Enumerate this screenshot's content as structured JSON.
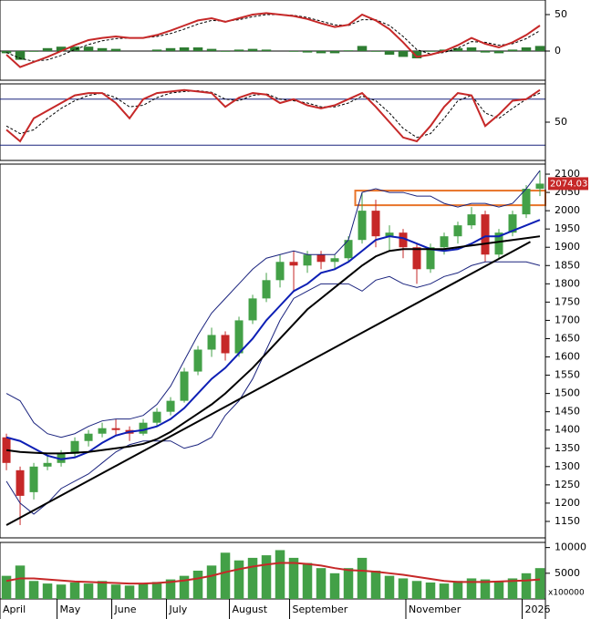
{
  "chart_data": [
    {
      "type": "macd",
      "ylim": [
        -40,
        70
      ],
      "yticks": [
        0,
        50
      ],
      "series": [
        {
          "style": "bar",
          "color": "#2e7d32",
          "values": [
            -3,
            -12,
            -1,
            4,
            6,
            6,
            6,
            4,
            3,
            0,
            0,
            2,
            4,
            5,
            5,
            3,
            -1,
            2,
            3,
            2,
            0,
            -1,
            -2,
            -3,
            -3,
            1,
            7,
            -1,
            -5,
            -8,
            -10,
            -1,
            2,
            4,
            5,
            -2,
            -3,
            2,
            5,
            7
          ]
        },
        {
          "style": "dash",
          "color": "#000000",
          "width": 1,
          "values": [
            -2,
            -10,
            -14,
            -12,
            -6,
            2,
            9,
            14,
            17,
            18,
            18,
            20,
            24,
            30,
            37,
            42,
            41,
            43,
            47,
            50,
            50,
            49,
            46,
            41,
            36,
            35,
            43,
            43,
            35,
            20,
            2,
            -4,
            -2,
            4,
            13,
            12,
            8,
            10,
            17,
            28
          ]
        },
        {
          "style": "line",
          "color": "#c62828",
          "width": 2,
          "values": [
            -5,
            -22,
            -15,
            -8,
            0,
            8,
            15,
            18,
            20,
            18,
            18,
            22,
            28,
            35,
            42,
            45,
            40,
            45,
            50,
            52,
            50,
            48,
            44,
            38,
            33,
            36,
            50,
            42,
            30,
            12,
            -8,
            -5,
            0,
            8,
            18,
            10,
            5,
            12,
            22,
            35
          ]
        }
      ]
    },
    {
      "type": "oscillator",
      "ylim": [
        0,
        100
      ],
      "yticks": [
        50
      ],
      "levels": [
        80,
        20
      ],
      "level_color": "#1a237e",
      "series": [
        {
          "style": "dash",
          "color": "#000000",
          "width": 1,
          "values": [
            45,
            35,
            40,
            55,
            68,
            78,
            85,
            88,
            82,
            70,
            72,
            82,
            88,
            90,
            91,
            89,
            80,
            78,
            85,
            87,
            80,
            78,
            75,
            70,
            70,
            75,
            84,
            78,
            62,
            42,
            30,
            35,
            55,
            78,
            85,
            62,
            55,
            68,
            80,
            88
          ]
        },
        {
          "style": "line",
          "color": "#c62828",
          "width": 2,
          "values": [
            40,
            25,
            55,
            65,
            75,
            85,
            88,
            88,
            75,
            55,
            80,
            88,
            90,
            92,
            90,
            88,
            70,
            82,
            88,
            86,
            75,
            80,
            72,
            68,
            72,
            80,
            88,
            70,
            50,
            30,
            25,
            45,
            70,
            88,
            85,
            45,
            60,
            78,
            80,
            92
          ]
        }
      ]
    },
    {
      "type": "candlestick",
      "ylim": [
        1105,
        2127.5
      ],
      "yticks": [
        1150,
        1200,
        1250,
        1300,
        1350,
        1400,
        1450,
        1500,
        1550,
        1600,
        1650,
        1700,
        1750,
        1800,
        1850,
        1900,
        1950,
        2000,
        2050,
        2100
      ],
      "up_color": "#43a047",
      "down_color": "#c62828",
      "open": [
        1380,
        1290,
        1230,
        1300,
        1310,
        1335,
        1370,
        1390,
        1405,
        1400,
        1390,
        1420,
        1450,
        1480,
        1560,
        1620,
        1660,
        1610,
        1700,
        1760,
        1810,
        1860,
        1850,
        1880,
        1860,
        1870,
        1920,
        2000,
        1930,
        1940,
        1900,
        1840,
        1900,
        1930,
        1960,
        1990,
        1880,
        1940,
        1990,
        2060
      ],
      "high": [
        1390,
        1300,
        1310,
        1330,
        1345,
        1380,
        1400,
        1420,
        1430,
        1410,
        1430,
        1460,
        1490,
        1570,
        1630,
        1680,
        1670,
        1710,
        1770,
        1830,
        1880,
        1890,
        1890,
        1890,
        1880,
        1930,
        2050,
        2030,
        1960,
        1950,
        1910,
        1910,
        1940,
        1970,
        2010,
        2000,
        1950,
        2000,
        2070,
        2110
      ],
      "low": [
        1290,
        1140,
        1210,
        1290,
        1300,
        1325,
        1355,
        1380,
        1385,
        1370,
        1385,
        1410,
        1440,
        1475,
        1550,
        1600,
        1590,
        1600,
        1690,
        1750,
        1790,
        1780,
        1830,
        1840,
        1840,
        1860,
        1910,
        1900,
        1890,
        1870,
        1800,
        1830,
        1880,
        1910,
        1950,
        1860,
        1870,
        1930,
        1980,
        2040
      ],
      "close": [
        1310,
        1220,
        1300,
        1310,
        1335,
        1370,
        1390,
        1405,
        1400,
        1390,
        1420,
        1450,
        1480,
        1560,
        1620,
        1660,
        1610,
        1700,
        1760,
        1810,
        1860,
        1850,
        1880,
        1860,
        1870,
        1920,
        2000,
        1930,
        1940,
        1900,
        1840,
        1900,
        1930,
        1960,
        1990,
        1880,
        1940,
        1990,
        2060,
        2074.03
      ],
      "last_color": "#c62828",
      "series": [
        {
          "style": "line",
          "color": "#1a237e",
          "width": 1,
          "values": [
            1500,
            1480,
            1420,
            1390,
            1380,
            1390,
            1410,
            1425,
            1430,
            1430,
            1440,
            1470,
            1520,
            1590,
            1660,
            1720,
            1760,
            1800,
            1840,
            1870,
            1880,
            1890,
            1880,
            1880,
            1880,
            1920,
            2050,
            2060,
            2050,
            2050,
            2040,
            2040,
            2020,
            2010,
            2020,
            2020,
            2010,
            2020,
            2060,
            2110
          ]
        },
        {
          "style": "line",
          "color": "#1a237e",
          "width": 1,
          "values": [
            1260,
            1200,
            1170,
            1200,
            1240,
            1260,
            1280,
            1310,
            1340,
            1360,
            1370,
            1370,
            1370,
            1350,
            1360,
            1380,
            1440,
            1480,
            1540,
            1620,
            1700,
            1760,
            1780,
            1800,
            1800,
            1800,
            1780,
            1810,
            1820,
            1800,
            1790,
            1800,
            1820,
            1830,
            1850,
            1860,
            1860,
            1860,
            1860,
            1850
          ]
        },
        {
          "style": "line",
          "color": "#0d1fb5",
          "width": 2,
          "values": [
            1380,
            1370,
            1350,
            1330,
            1320,
            1325,
            1340,
            1365,
            1385,
            1395,
            1400,
            1410,
            1430,
            1460,
            1500,
            1540,
            1570,
            1610,
            1650,
            1700,
            1740,
            1780,
            1800,
            1830,
            1840,
            1860,
            1890,
            1920,
            1930,
            1925,
            1910,
            1895,
            1890,
            1895,
            1910,
            1930,
            1930,
            1945,
            1960,
            1975
          ]
        },
        {
          "style": "line",
          "color": "#000000",
          "width": 2,
          "values": [
            1345,
            1340,
            1338,
            1336,
            1336,
            1338,
            1340,
            1345,
            1350,
            1355,
            1362,
            1375,
            1395,
            1420,
            1445,
            1470,
            1500,
            1535,
            1570,
            1610,
            1650,
            1690,
            1730,
            1760,
            1790,
            1820,
            1850,
            1875,
            1890,
            1895,
            1895,
            1895,
            1895,
            1900,
            1905,
            1910,
            1915,
            1920,
            1925,
            1930
          ]
        }
      ],
      "trendline": {
        "x": [
          0,
          38.3
        ],
        "y": [
          1140,
          1915
        ],
        "color": "#000000"
      },
      "zone": {
        "x": [
          25.5,
          39.4
        ],
        "y": [
          2015,
          2055
        ],
        "color": "#e8742a"
      }
    },
    {
      "type": "volume",
      "ylim": [
        0,
        11000
      ],
      "yticks": [
        5000,
        10000
      ],
      "unit_label": "x100000",
      "color": "#43a047",
      "values": [
        4500,
        6500,
        3500,
        3000,
        2800,
        3200,
        3000,
        3500,
        2800,
        2600,
        3000,
        3300,
        3800,
        4500,
        5500,
        6500,
        9000,
        7500,
        8000,
        8500,
        9500,
        8000,
        7000,
        6000,
        5000,
        6000,
        8000,
        5500,
        4500,
        4000,
        3500,
        3200,
        3000,
        3500,
        4000,
        3800,
        3500,
        4000,
        5000,
        6000
      ],
      "series": [
        {
          "style": "line",
          "color": "#c62828",
          "width": 2,
          "values": [
            3500,
            4000,
            4000,
            3800,
            3600,
            3400,
            3300,
            3200,
            3100,
            3000,
            3000,
            3100,
            3300,
            3600,
            4000,
            4500,
            5200,
            5800,
            6300,
            6700,
            7000,
            7000,
            6800,
            6500,
            6000,
            5600,
            5500,
            5300,
            5000,
            4700,
            4300,
            3900,
            3500,
            3300,
            3300,
            3300,
            3400,
            3500,
            3600,
            3800
          ]
        }
      ],
      "xlim": [
        -0.47,
        39.4
      ],
      "xticks": [
        {
          "value": -0.47,
          "label": "April"
        },
        {
          "value": 3.7,
          "label": "May"
        },
        {
          "value": 7.7,
          "label": "June"
        },
        {
          "value": 11.7,
          "label": "July"
        },
        {
          "value": 16.3,
          "label": "August"
        },
        {
          "value": 20.7,
          "label": "September"
        },
        {
          "value": 29.2,
          "label": "November"
        },
        {
          "value": 37.7,
          "label": "2026"
        }
      ]
    }
  ]
}
